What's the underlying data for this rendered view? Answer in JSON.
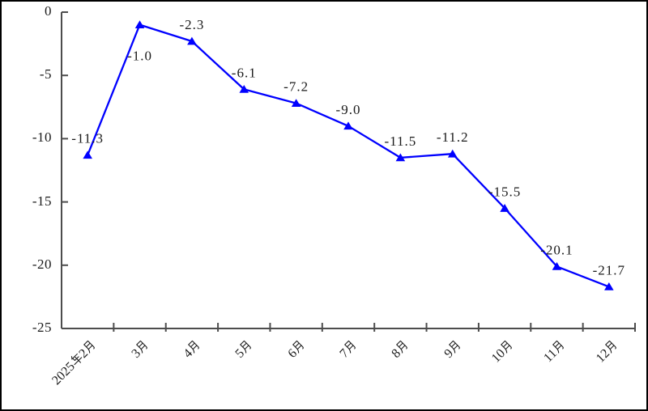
{
  "window": {
    "background_color": "#ffffff",
    "frame_border_color": "#000000"
  },
  "chart_data": {
    "type": "line",
    "title": "",
    "xlabel": "",
    "ylabel": "",
    "categories": [
      "2025年2月",
      "3月",
      "4月",
      "5月",
      "6月",
      "7月",
      "8月",
      "9月",
      "10月",
      "11月",
      "12月"
    ],
    "series": [
      {
        "name": "",
        "values": [
          -11.3,
          -1.0,
          -2.3,
          -6.1,
          -7.2,
          -9.0,
          -11.5,
          -11.2,
          -15.5,
          -20.1,
          -21.7
        ],
        "color": "#0000ff",
        "marker": "triangle-up"
      }
    ],
    "point_labels": [
      "-11.3",
      "-1.0",
      "-2.3",
      "-6.1",
      "-7.2",
      "-9.0",
      "-11.5",
      "-11.2",
      "-15.5",
      "-20.1",
      "-21.7"
    ],
    "point_label_positions": [
      "above",
      "below",
      "above",
      "above",
      "above",
      "above",
      "above",
      "above",
      "above",
      "above",
      "above"
    ],
    "ylim": [
      -25,
      0
    ],
    "y_ticks": [
      0,
      -5,
      -10,
      -15,
      -20,
      -25
    ],
    "y_tick_labels": [
      "0",
      "-5",
      "-10",
      "-15",
      "-20",
      "-25"
    ],
    "grid": false,
    "legend": false,
    "line_color": "#0000ff",
    "marker_color": "#0000ff",
    "axis_color": "#4d4d4d",
    "text_color": "#1a1a1a"
  }
}
